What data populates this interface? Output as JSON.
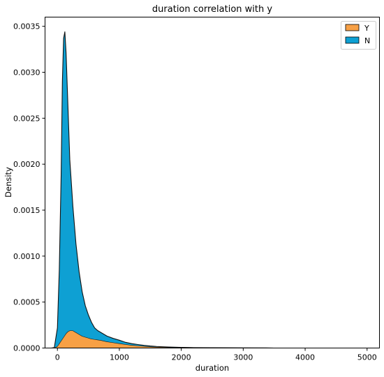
{
  "chart_data": {
    "type": "area",
    "title": "duration correlation with y",
    "xlabel": "duration",
    "ylabel": "Density",
    "xlim": [
      -200,
      5200
    ],
    "ylim": [
      0,
      0.0036
    ],
    "xticks": [
      0,
      1000,
      2000,
      3000,
      4000,
      5000
    ],
    "xtick_labels": [
      "0",
      "1000",
      "2000",
      "3000",
      "4000",
      "5000"
    ],
    "yticks": [
      0,
      0.0005,
      0.001,
      0.0015,
      0.002,
      0.0025,
      0.003,
      0.0035
    ],
    "ytick_labels": [
      "0.0000",
      "0.0005",
      "0.0010",
      "0.0015",
      "0.0020",
      "0.0025",
      "0.0030",
      "0.0035"
    ],
    "stacked": true,
    "legend_position": "top-right",
    "grid": false,
    "x": [
      -100,
      -50,
      0,
      30,
      60,
      80,
      100,
      120,
      140,
      170,
      200,
      250,
      300,
      350,
      400,
      450,
      500,
      550,
      600,
      650,
      700,
      800,
      900,
      1000,
      1100,
      1200,
      1300,
      1400,
      1500,
      1600,
      1700,
      1800,
      2000,
      2200,
      2500,
      3000,
      3500,
      4000,
      4500,
      4950
    ],
    "series": [
      {
        "name": "Y",
        "color": "#f7a045",
        "values": [
          0,
          0,
          2e-05,
          5e-05,
          8e-05,
          0.0001,
          0.00012,
          0.00014,
          0.00016,
          0.00018,
          0.00019,
          0.00019,
          0.00017,
          0.00015,
          0.00013,
          0.00012,
          0.00011,
          0.0001,
          9.5e-05,
          9e-05,
          8.5e-05,
          7e-05,
          6e-05,
          5e-05,
          4e-05,
          3.2e-05,
          2.6e-05,
          2e-05,
          1.5e-05,
          1.2e-05,
          1e-05,
          8e-06,
          5e-06,
          3e-06,
          2e-06,
          1e-06,
          0,
          0,
          0,
          0
        ]
      },
      {
        "name": "N",
        "color": "#0ea0d3",
        "values": [
          0,
          5e-06,
          0.0002,
          0.0008,
          0.0018,
          0.0028,
          0.00325,
          0.0033,
          0.00305,
          0.00245,
          0.00186,
          0.00135,
          0.00096,
          0.00068,
          0.00048,
          0.00034,
          0.00025,
          0.00018,
          0.000125,
          0.0001,
          8.5e-05,
          6e-05,
          4.5e-05,
          3.5e-05,
          2.2e-05,
          1.6e-05,
          1.2e-05,
          9e-06,
          7e-06,
          5e-06,
          4e-06,
          3e-06,
          2e-06,
          1.5e-06,
          1e-06,
          5e-07,
          0,
          0,
          0,
          0
        ]
      }
    ]
  }
}
